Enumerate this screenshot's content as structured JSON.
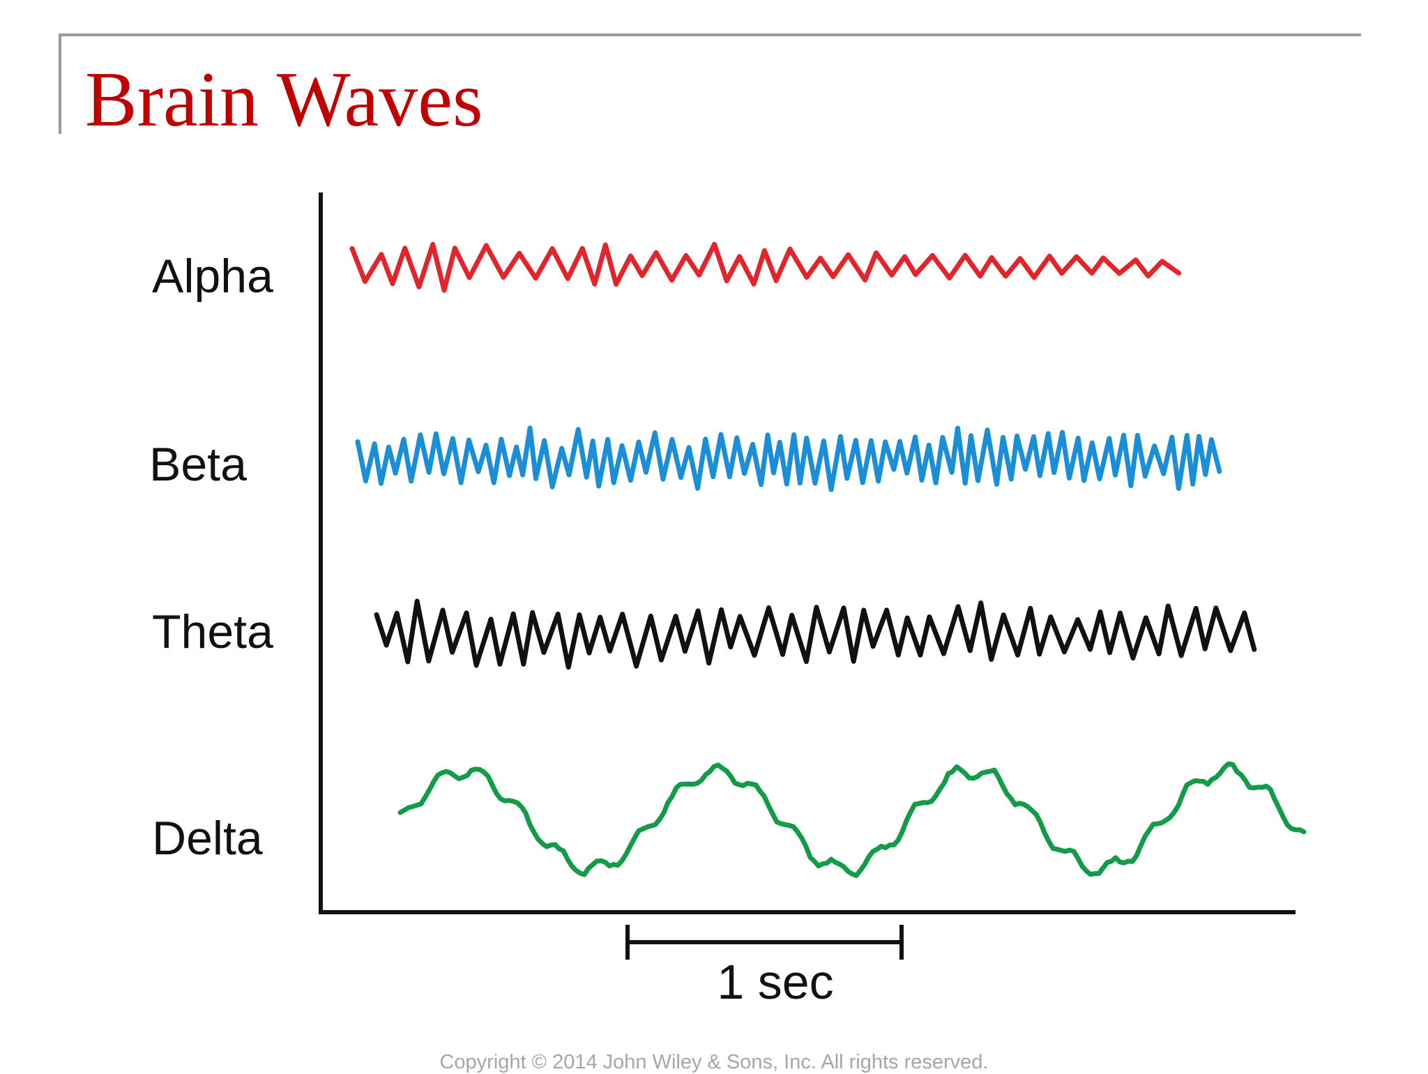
{
  "slide": {
    "title": "Brain Waves",
    "copyright": "Copyright © 2014 John Wiley & Sons, Inc. All rights reserved."
  },
  "diagram": {
    "scale_label": "1 sec",
    "waves": [
      {
        "key": "alpha",
        "label": "Alpha",
        "color": "#e3242b"
      },
      {
        "key": "beta",
        "label": "Beta",
        "color": "#1a8fd8"
      },
      {
        "key": "theta",
        "label": "Theta",
        "color": "#111111"
      },
      {
        "key": "delta",
        "label": "Delta",
        "color": "#139b48"
      }
    ]
  }
}
